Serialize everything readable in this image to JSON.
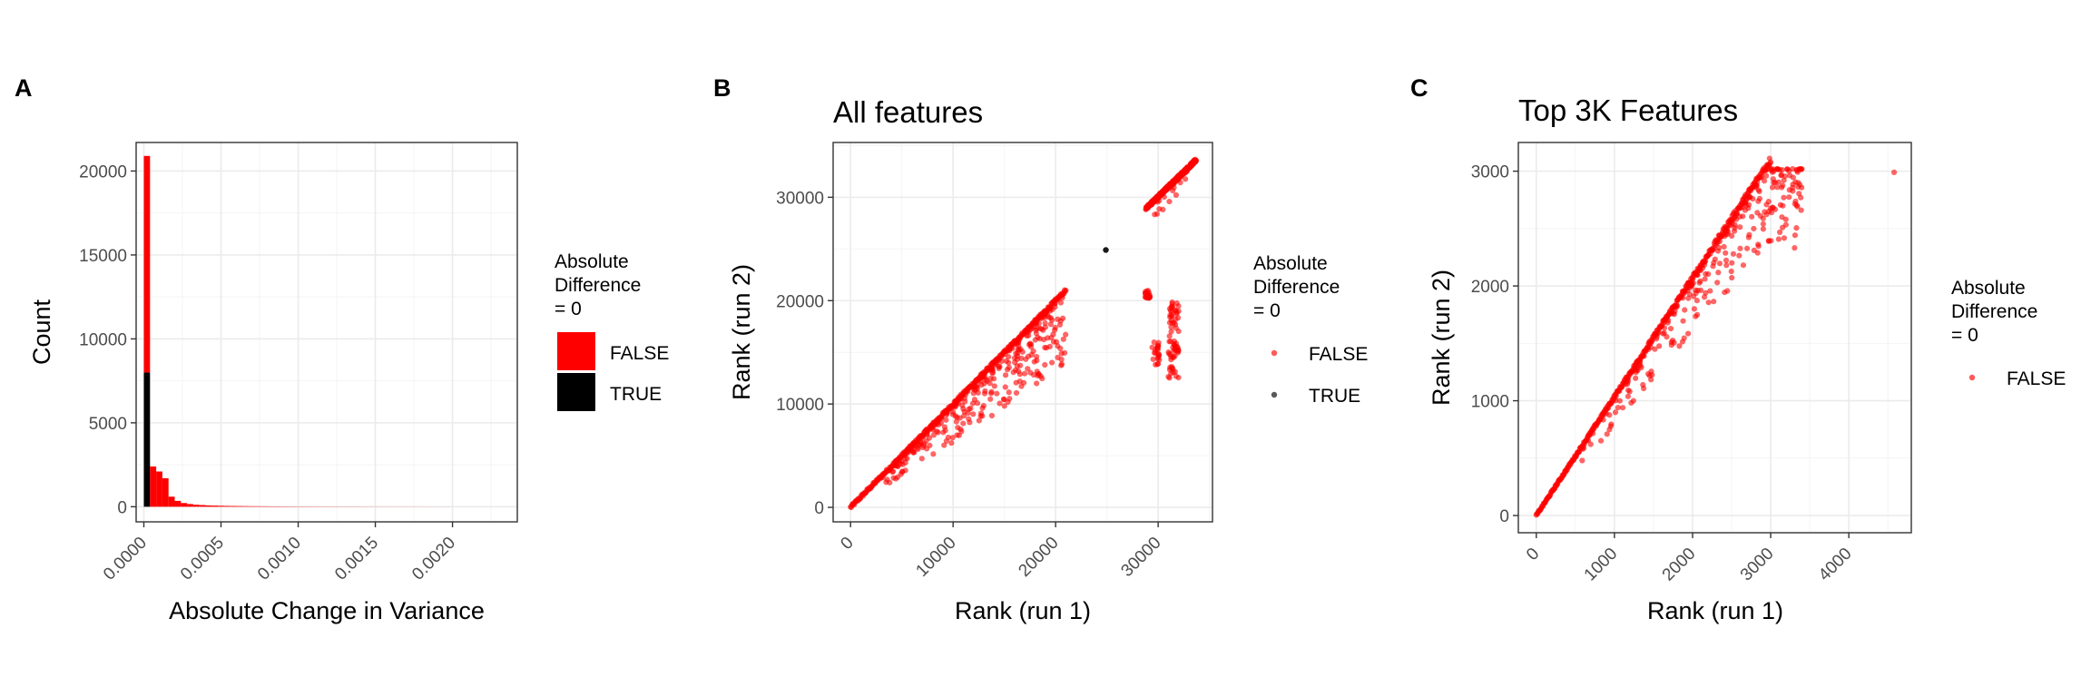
{
  "colors": {
    "false": "#ff0000",
    "true": "#000000"
  },
  "chart_data": [
    {
      "panel_label": "A",
      "type": "bar",
      "subtype": "stacked-histogram",
      "title": "",
      "xlabel": "Absolute Change in Variance",
      "ylabel": "Count",
      "xlim": [
        -5e-05,
        0.00242
      ],
      "ylim": [
        -900,
        21700
      ],
      "xticks": [
        0.0,
        0.0005,
        0.001,
        0.0015,
        0.002
      ],
      "xtick_labels": [
        "0.0000",
        "0.0005",
        "0.0010",
        "0.0015",
        "0.0020"
      ],
      "yticks": [
        0,
        5000,
        10000,
        15000,
        20000
      ],
      "ytick_labels": [
        "0",
        "5000",
        "10000",
        "15000",
        "20000"
      ],
      "grid": true,
      "bin_width": 4e-05,
      "bins_start": [
        0.0,
        4e-05,
        8e-05,
        0.00012,
        0.00016,
        0.0002,
        0.00024,
        0.00028,
        0.00032,
        0.00036,
        0.0004,
        0.00044,
        0.00048,
        0.00052,
        0.00056,
        0.0006,
        0.00064,
        0.00068,
        0.00072,
        0.00076,
        0.0008,
        0.00084,
        0.00088,
        0.00092,
        0.00096,
        0.001,
        0.00104,
        0.00108,
        0.00112,
        0.00116,
        0.0012,
        0.00124,
        0.00128,
        0.00132,
        0.00136,
        0.0014,
        0.00144,
        0.00148,
        0.00152,
        0.00156,
        0.0016,
        0.00164,
        0.00168,
        0.00172,
        0.00176,
        0.0018,
        0.00184,
        0.00188,
        0.00192,
        0.00196
      ],
      "series": [
        {
          "name": "FALSE",
          "values": [
            12900,
            2400,
            2100,
            1700,
            600,
            350,
            220,
            160,
            120,
            100,
            80,
            70,
            60,
            50,
            45,
            40,
            35,
            30,
            28,
            25,
            22,
            20,
            18,
            16,
            15,
            14,
            13,
            12,
            11,
            10,
            10,
            9,
            9,
            8,
            8,
            7,
            7,
            6,
            6,
            6,
            5,
            5,
            5,
            4,
            4,
            4,
            3,
            3,
            3,
            2
          ]
        },
        {
          "name": "TRUE",
          "values": [
            8000,
            0,
            0,
            0,
            0,
            0,
            0,
            0,
            0,
            0,
            0,
            0,
            0,
            0,
            0,
            0,
            0,
            0,
            0,
            0,
            0,
            0,
            0,
            0,
            0,
            0,
            0,
            0,
            0,
            0,
            0,
            0,
            0,
            0,
            0,
            0,
            0,
            0,
            0,
            0,
            0,
            0,
            0,
            0,
            0,
            0,
            0,
            0,
            0,
            0
          ]
        }
      ],
      "legend": {
        "title": "Absolute\nDifference\n= 0",
        "placement": "right",
        "entries": [
          "FALSE",
          "TRUE"
        ]
      }
    },
    {
      "panel_label": "B",
      "type": "scatter",
      "title": "All features",
      "xlabel": "Rank (run 1)",
      "ylabel": "Rank (run 2)",
      "xlim": [
        -1700,
        35300
      ],
      "ylim": [
        -1400,
        35300
      ],
      "xticks": [
        0,
        10000,
        20000,
        30000
      ],
      "xtick_labels": [
        "0",
        "10000",
        "20000",
        "30000"
      ],
      "yticks": [
        0,
        10000,
        20000,
        30000
      ],
      "ytick_labels": [
        "0",
        "10000",
        "20000",
        "30000"
      ],
      "grid": true,
      "point_groups": [
        {
          "name": "FALSE",
          "kind": "diagonal",
          "x_range": [
            0,
            21000
          ],
          "y_range": [
            0,
            21000
          ]
        },
        {
          "name": "FALSE",
          "kind": "below-diagonal-scatter",
          "x_range": [
            3000,
            21000
          ]
        },
        {
          "name": "FALSE",
          "kind": "diagonal",
          "x_range": [
            28800,
            33700
          ],
          "y_range": [
            28900,
            33600
          ]
        },
        {
          "name": "FALSE",
          "kind": "cluster",
          "x_range": [
            28700,
            29200
          ],
          "y_range": [
            20200,
            21000
          ]
        },
        {
          "name": "FALSE",
          "kind": "cluster",
          "x_range": [
            29300,
            30200
          ],
          "y_range": [
            13800,
            16200
          ]
        },
        {
          "name": "FALSE",
          "kind": "vertical-band",
          "x_range": [
            31000,
            32000
          ],
          "y_range": [
            12500,
            20500
          ]
        },
        {
          "name": "TRUE",
          "kind": "single",
          "x": 24900,
          "y": 24900
        }
      ],
      "legend": {
        "title": "Absolute\nDifference\n= 0",
        "placement": "right",
        "entries": [
          "FALSE",
          "TRUE"
        ]
      }
    },
    {
      "panel_label": "C",
      "type": "scatter",
      "title": "Top 3K Features",
      "xlabel": "Rank (run 1)",
      "ylabel": "Rank (run 2)",
      "xlim": [
        -230,
        4800
      ],
      "ylim": [
        -150,
        3250
      ],
      "xticks": [
        0,
        1000,
        2000,
        3000,
        4000
      ],
      "xtick_labels": [
        "0",
        "1000",
        "2000",
        "3000",
        "4000"
      ],
      "yticks": [
        0,
        1000,
        2000,
        3000
      ],
      "ytick_labels": [
        "0",
        "1000",
        "2000",
        "3000"
      ],
      "grid": true,
      "point_groups": [
        {
          "name": "FALSE",
          "kind": "diagonal",
          "x_range": [
            0,
            3000
          ],
          "y_range": [
            0,
            3100
          ]
        },
        {
          "name": "FALSE",
          "kind": "below-diagonal-scatter",
          "x_range": [
            500,
            3400
          ]
        },
        {
          "name": "FALSE",
          "kind": "single",
          "x": 4580,
          "y": 2990
        }
      ],
      "legend": {
        "title": "Absolute\nDifference\n= 0",
        "placement": "right",
        "entries": [
          "FALSE"
        ]
      }
    }
  ]
}
